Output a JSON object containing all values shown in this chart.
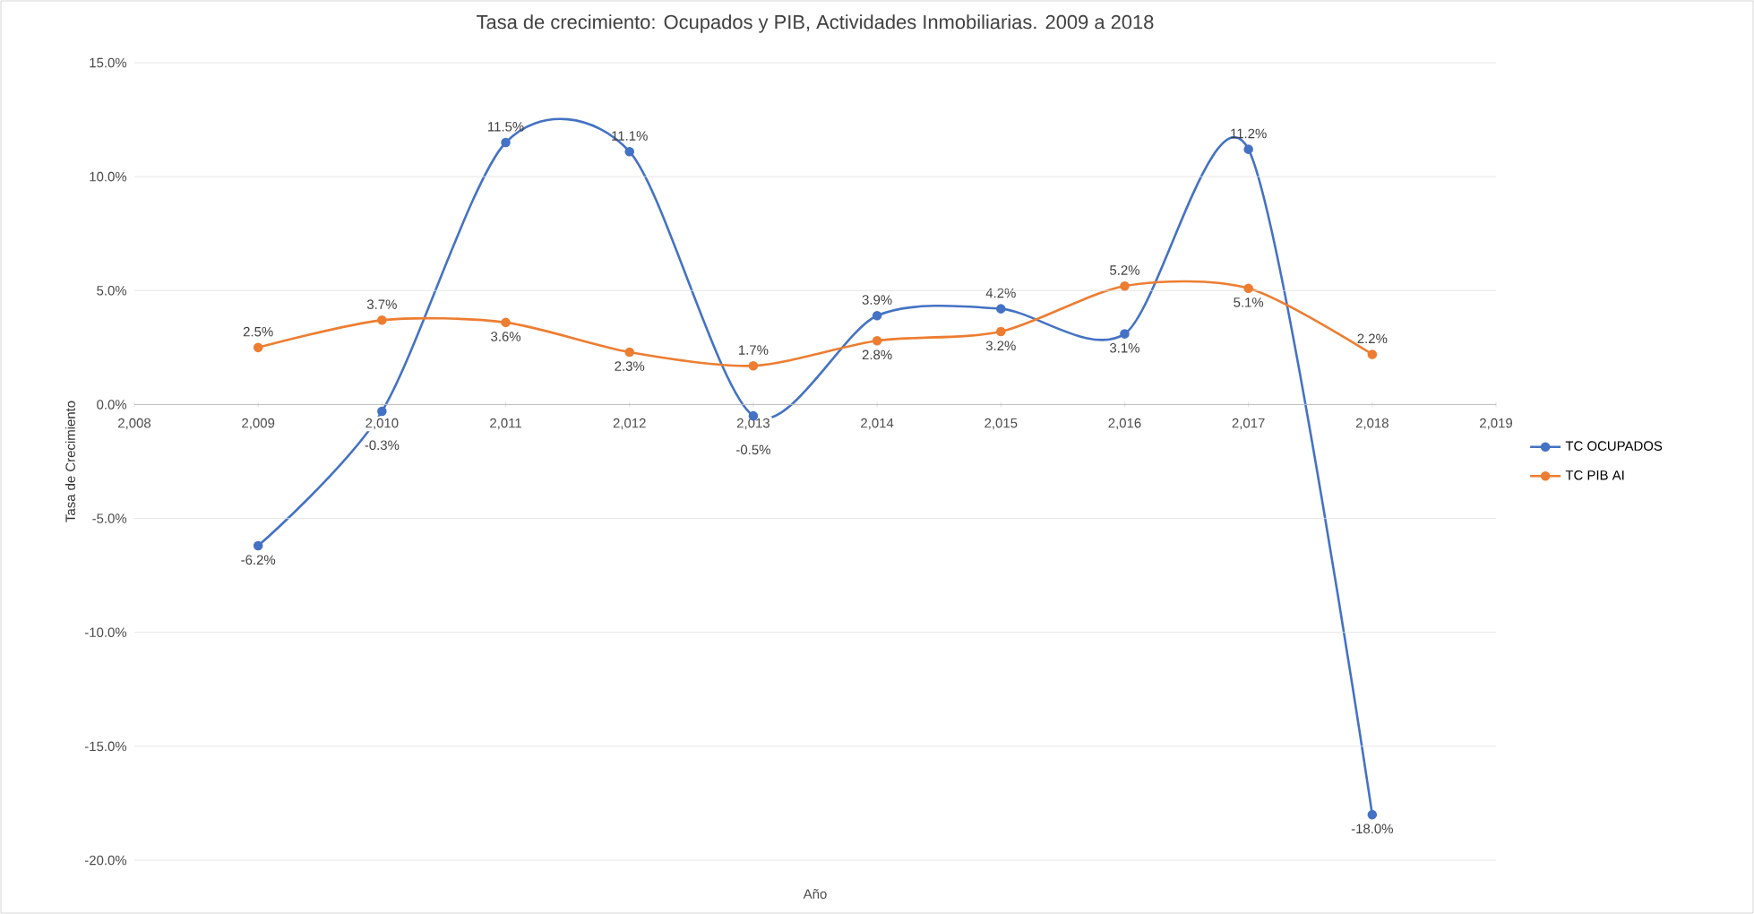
{
  "chart_data": {
    "type": "line",
    "title": "Tasa de crecimiento: Ocupados y PIB, Actividades Inmobiliarias. 2009 a 2018",
    "xlabel": "Año",
    "ylabel": "Tasa de Crecimiento",
    "x": [
      2009,
      2010,
      2011,
      2012,
      2013,
      2014,
      2015,
      2016,
      2017,
      2018
    ],
    "series": [
      {
        "name": "TC OCUPADOS",
        "color": "#4472c4",
        "values": [
          -6.2,
          -0.3,
          11.5,
          11.1,
          -0.5,
          3.9,
          4.2,
          3.1,
          11.2,
          -18.0
        ],
        "value_labels": [
          "-6.2%",
          "-0.3%",
          "11.5%",
          "11.1%",
          "-0.5%",
          "3.9%",
          "4.2%",
          "3.1%",
          "11.2%",
          "-18.0%"
        ]
      },
      {
        "name": "TC PIB AI",
        "color": "#ed7d31",
        "values": [
          2.5,
          3.7,
          3.6,
          2.3,
          1.7,
          2.8,
          3.2,
          5.2,
          5.1,
          2.2
        ],
        "value_labels": [
          "2.5%",
          "3.7%",
          "3.6%",
          "2.3%",
          "1.7%",
          "2.8%",
          "3.2%",
          "5.2%",
          "5.1%",
          "2.2%"
        ]
      }
    ],
    "xlim": [
      2008,
      2019
    ],
    "xticks": [
      {
        "value": 2008,
        "label": "2,008"
      },
      {
        "value": 2009,
        "label": "2,009"
      },
      {
        "value": 2010,
        "label": "2,010"
      },
      {
        "value": 2011,
        "label": "2,011"
      },
      {
        "value": 2012,
        "label": "2,012"
      },
      {
        "value": 2013,
        "label": "2,013"
      },
      {
        "value": 2014,
        "label": "2,014"
      },
      {
        "value": 2015,
        "label": "2,015"
      },
      {
        "value": 2016,
        "label": "2,016"
      },
      {
        "value": 2017,
        "label": "2,017"
      },
      {
        "value": 2018,
        "label": "2,018"
      },
      {
        "value": 2019,
        "label": "2,019"
      }
    ],
    "ylim": [
      -20,
      15
    ],
    "yticks": [
      {
        "value": -20,
        "label": "-20.0%"
      },
      {
        "value": -15,
        "label": "-15.0%"
      },
      {
        "value": -10,
        "label": "-10.0%"
      },
      {
        "value": -5,
        "label": "-5.0%"
      },
      {
        "value": 0,
        "label": "0.0%"
      },
      {
        "value": 5,
        "label": "5.0%"
      },
      {
        "value": 10,
        "label": "10.0%"
      },
      {
        "value": 15,
        "label": "15.0%"
      }
    ],
    "grid": "y",
    "legend": "right",
    "marker": "circle",
    "line_style": "solid"
  }
}
